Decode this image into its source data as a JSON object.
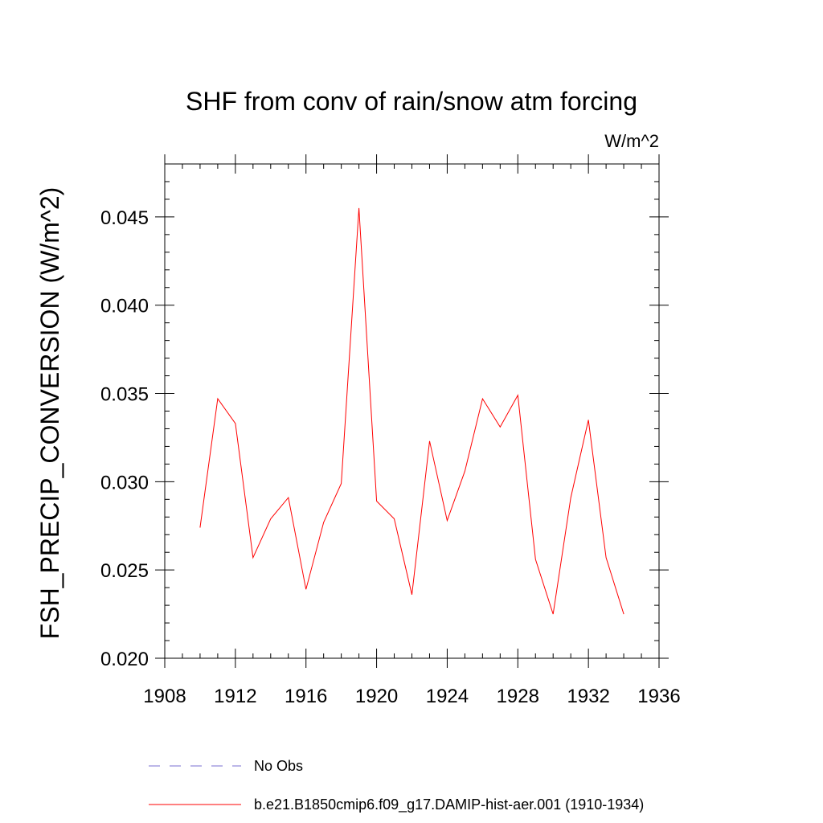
{
  "chart_data": {
    "type": "line",
    "title": "SHF from conv of rain/snow atm forcing",
    "units": "W/m^2",
    "ylabel": "FSH_PRECIP_CONVERSION  (W/m^2)",
    "xlabel": "",
    "xlim": [
      1908,
      1936
    ],
    "ylim": [
      0.02,
      0.048
    ],
    "x_ticks": [
      1908,
      1912,
      1916,
      1920,
      1924,
      1928,
      1932,
      1936
    ],
    "x_tick_labels": [
      "1908",
      "1912",
      "1916",
      "1920",
      "1924",
      "1928",
      "1932",
      "1936"
    ],
    "y_ticks": [
      0.02,
      0.025,
      0.03,
      0.035,
      0.04,
      0.045
    ],
    "y_tick_labels": [
      "0.020",
      "0.025",
      "0.030",
      "0.035",
      "0.040",
      "0.045"
    ],
    "grid": false,
    "legend_position": "bottom",
    "legend": [
      {
        "label": "No Obs",
        "color": "#7a6fd0",
        "dash": "dashed"
      },
      {
        "label": "b.e21.B1850cmip6.f09_g17.DAMIP-hist-aer.001 (1910-1934)",
        "color": "#ff0000",
        "dash": "solid"
      }
    ],
    "series": [
      {
        "name": "b.e21.B1850cmip6.f09_g17.DAMIP-hist-aer.001 (1910-1934)",
        "color": "#ff0000",
        "x": [
          1910,
          1911,
          1912,
          1913,
          1914,
          1915,
          1916,
          1917,
          1918,
          1919,
          1920,
          1921,
          1922,
          1923,
          1924,
          1925,
          1926,
          1927,
          1928,
          1929,
          1930,
          1931,
          1932,
          1933,
          1934
        ],
        "y": [
          0.0274,
          0.0347,
          0.0333,
          0.0257,
          0.0279,
          0.0291,
          0.0239,
          0.0277,
          0.0299,
          0.0455,
          0.0289,
          0.0279,
          0.0236,
          0.0323,
          0.0278,
          0.0306,
          0.0347,
          0.0331,
          0.0349,
          0.0256,
          0.0225,
          0.0291,
          0.0335,
          0.0257,
          0.0225
        ]
      }
    ]
  }
}
